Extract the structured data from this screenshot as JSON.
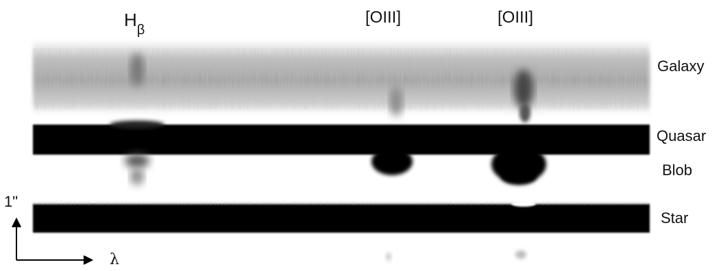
{
  "figure": {
    "line_labels": {
      "hbeta_base": "H",
      "hbeta_sub": "β",
      "oiii_1": "[OIII]",
      "oiii_2": "[OIII]"
    },
    "row_labels": {
      "galaxy": "Galaxy",
      "quasar": "Quasar",
      "blob": "Blob",
      "star": "Star"
    },
    "scale_bar_label": "1\"",
    "wavelength_axis_label": "λ",
    "colors": {
      "background": "#ffffff",
      "trace_dark": "#000000",
      "galaxy_haze": "#9a9a9a",
      "text": "#111111"
    }
  }
}
